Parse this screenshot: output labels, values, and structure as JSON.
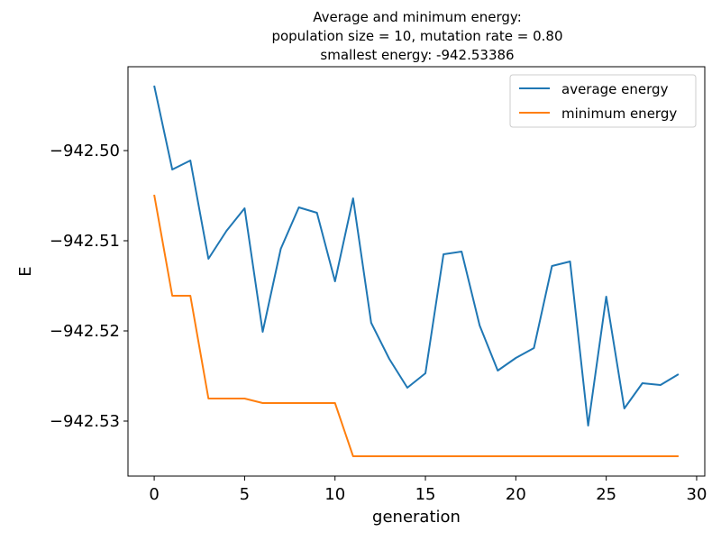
{
  "chart_data": {
    "type": "line",
    "title_lines": [
      "Average and minimum energy:",
      "population size = 10, mutation rate = 0.80",
      "smallest energy: -942.53386"
    ],
    "xlabel": "generation",
    "ylabel": "E",
    "xlim": [
      -1.45,
      30.45
    ],
    "ylim": [
      -942.5361,
      -942.4907
    ],
    "x_ticks": [
      0,
      5,
      10,
      15,
      20,
      25,
      30
    ],
    "y_ticks": [
      -942.5,
      -942.51,
      -942.52,
      -942.53
    ],
    "y_tick_labels": [
      "−942.50",
      "−942.51",
      "−942.52",
      "−942.53"
    ],
    "grid": false,
    "legend_position": "top-right",
    "x": [
      0,
      1,
      2,
      3,
      4,
      5,
      6,
      7,
      8,
      9,
      10,
      11,
      12,
      13,
      14,
      15,
      16,
      17,
      18,
      19,
      20,
      21,
      22,
      23,
      24,
      25,
      26,
      27,
      28,
      29
    ],
    "series": [
      {
        "name": "average energy",
        "color": "#1f77b4",
        "values": [
          -942.4928,
          -942.5021,
          -942.5011,
          -942.512,
          -942.5089,
          -942.5064,
          -942.5201,
          -942.5109,
          -942.5063,
          -942.5069,
          -942.5145,
          -942.5053,
          -942.5191,
          -942.5231,
          -942.5263,
          -942.5247,
          -942.5115,
          -942.5112,
          -942.5194,
          -942.5244,
          -942.523,
          -942.5219,
          -942.5128,
          -942.5123,
          -942.5305,
          -942.5162,
          -942.5286,
          -942.5258,
          -942.526,
          -942.5248
        ]
      },
      {
        "name": "minimum energy",
        "color": "#ff7f0e",
        "values": [
          -942.5049,
          -942.5161,
          -942.5161,
          -942.5275,
          -942.5275,
          -942.5275,
          -942.528,
          -942.528,
          -942.528,
          -942.528,
          -942.528,
          -942.5339,
          -942.5339,
          -942.5339,
          -942.5339,
          -942.5339,
          -942.5339,
          -942.5339,
          -942.5339,
          -942.5339,
          -942.5339,
          -942.5339,
          -942.5339,
          -942.5339,
          -942.5339,
          -942.5339,
          -942.5339,
          -942.5339,
          -942.5339,
          -942.5339
        ]
      }
    ]
  }
}
